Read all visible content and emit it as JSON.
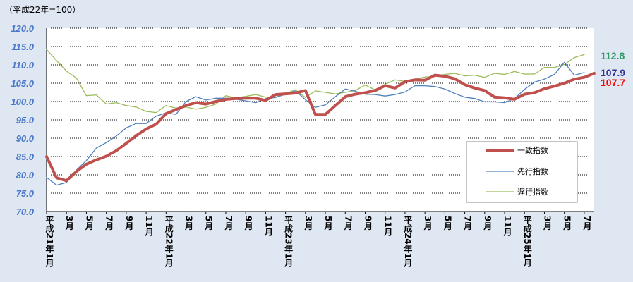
{
  "colors": {
    "background": "#dfe7f2",
    "plot_bg": "#ffffff",
    "gridline": "#000000",
    "coincident": "#c0504d",
    "leading": "#4f81bd",
    "lagging": "#9bbb59",
    "label_coincident": "#ff0000",
    "label_leading": "#333399",
    "label_lagging": "#339966"
  },
  "chart_data": {
    "type": "line",
    "unit_note": "（平成22年=100）",
    "ylim": [
      70,
      120
    ],
    "y_ticks": [
      "120.0",
      "115.0",
      "110.0",
      "105.0",
      "100.0",
      "95.0",
      "90.0",
      "85.0",
      "80.0",
      "75.0",
      "70.0"
    ],
    "x_ticks": [
      {
        "i": 0,
        "label": "平成21年1月"
      },
      {
        "i": 2,
        "label": "3月"
      },
      {
        "i": 4,
        "label": "5月"
      },
      {
        "i": 6,
        "label": "7月"
      },
      {
        "i": 8,
        "label": "9月"
      },
      {
        "i": 10,
        "label": "11月"
      },
      {
        "i": 12,
        "label": "平成22年1月"
      },
      {
        "i": 14,
        "label": "3月"
      },
      {
        "i": 16,
        "label": "5月"
      },
      {
        "i": 18,
        "label": "7月"
      },
      {
        "i": 20,
        "label": "9月"
      },
      {
        "i": 22,
        "label": "11月"
      },
      {
        "i": 24,
        "label": "平成23年1月"
      },
      {
        "i": 26,
        "label": "3月"
      },
      {
        "i": 28,
        "label": "5月"
      },
      {
        "i": 30,
        "label": "7月"
      },
      {
        "i": 32,
        "label": "9月"
      },
      {
        "i": 34,
        "label": "11月"
      },
      {
        "i": 36,
        "label": "平成24年1月"
      },
      {
        "i": 38,
        "label": "3月"
      },
      {
        "i": 40,
        "label": "5月"
      },
      {
        "i": 42,
        "label": "7月"
      },
      {
        "i": 44,
        "label": "9月"
      },
      {
        "i": 46,
        "label": "11月"
      },
      {
        "i": 48,
        "label": "平成25年1月"
      },
      {
        "i": 50,
        "label": "3月"
      },
      {
        "i": 52,
        "label": "5月"
      },
      {
        "i": 54,
        "label": "7月"
      }
    ],
    "series": [
      {
        "name": "一致指数",
        "color": "#c0504d",
        "width": 4,
        "end_label": "107.7",
        "values": [
          85.0,
          79.2,
          78.4,
          80.9,
          82.9,
          84.1,
          85.1,
          86.6,
          88.6,
          90.7,
          92.5,
          93.8,
          96.7,
          97.8,
          98.9,
          99.7,
          99.3,
          100.0,
          100.6,
          100.8,
          100.9,
          100.9,
          100.3,
          101.9,
          102.1,
          102.3,
          103.0,
          96.5,
          96.5,
          98.9,
          101.3,
          102.0,
          102.4,
          103.0,
          104.3,
          103.7,
          105.4,
          105.9,
          105.8,
          107.2,
          106.9,
          106.2,
          104.6,
          103.7,
          103.0,
          101.2,
          101.0,
          100.6,
          102.0,
          102.4,
          103.5,
          104.2,
          105.0,
          106.1,
          106.6,
          107.7
        ]
      },
      {
        "name": "先行指数",
        "color": "#4f81bd",
        "width": 1.3,
        "end_label": "107.9",
        "values": [
          79.3,
          77.2,
          77.9,
          81.3,
          83.9,
          87.3,
          88.8,
          90.6,
          92.8,
          94.0,
          94.0,
          96.0,
          96.9,
          96.5,
          100.0,
          101.3,
          100.4,
          100.9,
          100.9,
          100.6,
          100.2,
          99.7,
          100.8,
          101.1,
          102.0,
          102.9,
          100.5,
          98.4,
          99.1,
          101.3,
          103.4,
          102.8,
          102.0,
          101.9,
          101.5,
          101.9,
          102.6,
          104.3,
          104.3,
          104.1,
          103.4,
          102.2,
          101.2,
          100.8,
          99.9,
          99.9,
          99.7,
          100.8,
          103.3,
          105.3,
          106.1,
          107.4,
          110.7,
          107.2,
          107.9
        ]
      },
      {
        "name": "遅行指数",
        "color": "#9bbb59",
        "width": 1.3,
        "end_label": "112.8",
        "values": [
          114.2,
          111.2,
          108.3,
          106.4,
          101.6,
          101.8,
          99.3,
          99.7,
          98.9,
          98.5,
          97.3,
          97.0,
          98.9,
          98.2,
          98.5,
          97.9,
          98.4,
          99.3,
          101.6,
          101.0,
          101.4,
          101.9,
          101.2,
          101.2,
          102.2,
          103.2,
          101.1,
          102.9,
          102.5,
          102.1,
          102.5,
          103.0,
          104.5,
          103.2,
          104.7,
          105.9,
          105.5,
          106.1,
          106.7,
          106.8,
          107.4,
          107.7,
          107.0,
          107.2,
          106.6,
          107.7,
          107.4,
          108.2,
          107.5,
          107.5,
          109.3,
          109.3,
          110.1,
          112.0,
          112.8
        ]
      }
    ],
    "legend": {
      "position": "right-middle",
      "entries": [
        "一致指数",
        "先行指数",
        "遅行指数"
      ]
    },
    "grid": true
  }
}
